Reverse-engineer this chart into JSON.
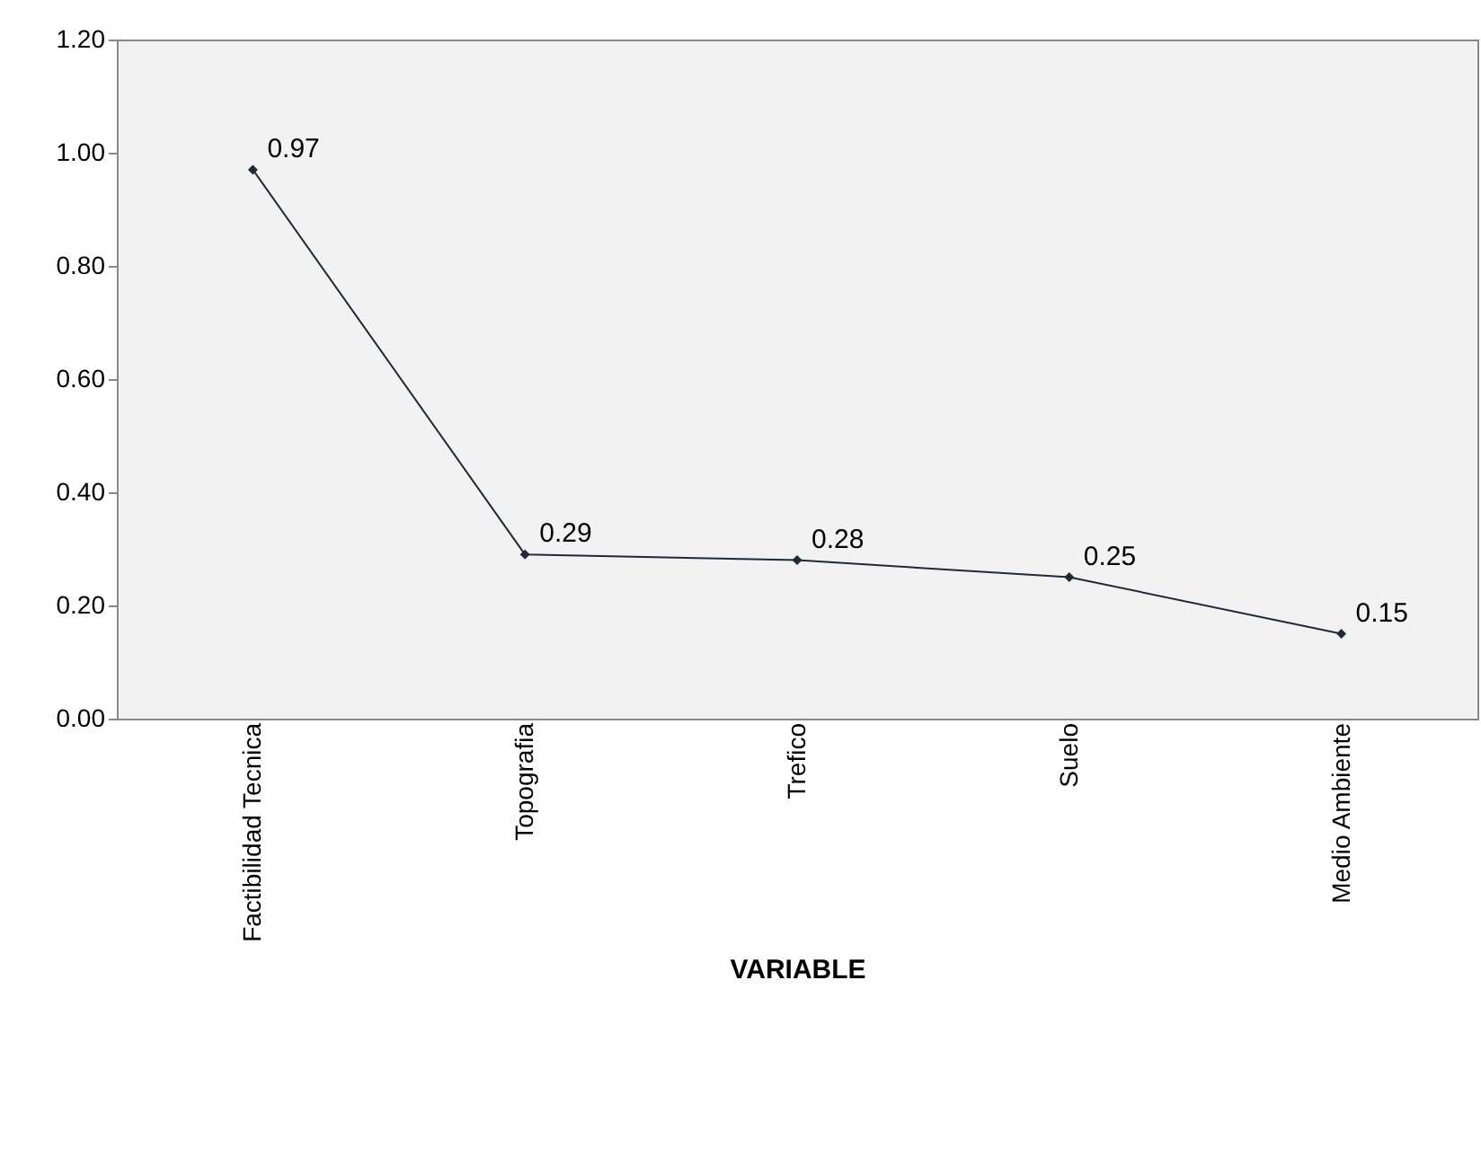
{
  "chart_data": {
    "type": "line",
    "xlabel": "VARIABLE",
    "categories": [
      "Factibilidad Tecnica",
      "Topografia",
      "Trefico",
      "Suelo",
      "Medio Ambiente"
    ],
    "series": [
      {
        "color": "#1f2a38",
        "values": [
          0.97,
          0.29,
          0.28,
          0.25,
          0.15
        ]
      }
    ],
    "ylim": [
      0,
      1.2
    ],
    "yticks": [
      {
        "value": 0,
        "label": "0.00"
      },
      {
        "value": 0.2,
        "label": "0.20"
      },
      {
        "value": 0.4,
        "label": "0.40"
      },
      {
        "value": 0.6,
        "label": "0.60"
      },
      {
        "value": 0.8,
        "label": "0.80"
      },
      {
        "value": 1,
        "label": "1.00"
      },
      {
        "value": 1.2,
        "label": "1.20"
      }
    ],
    "grid": false,
    "marker": "diamond",
    "line_style": "solid",
    "data_labels": true,
    "legend": false
  }
}
